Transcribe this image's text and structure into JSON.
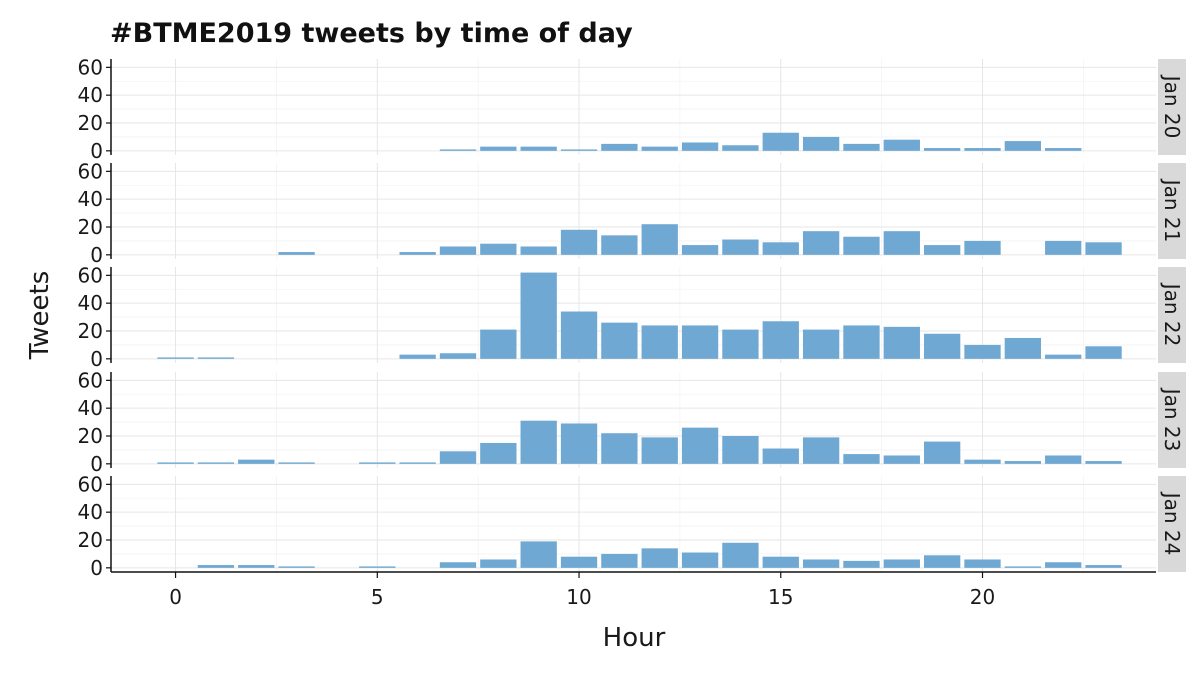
{
  "chart_data": {
    "type": "bar",
    "title": "#BTME2019 tweets by time of day",
    "xlabel": "Hour",
    "ylabel": "Tweets",
    "x_ticks": [
      0,
      5,
      10,
      15,
      20
    ],
    "xlim": [
      -1.6,
      24.3
    ],
    "y_ticks": [
      0,
      20,
      40,
      60
    ],
    "ylim": [
      -3,
      66
    ],
    "bar_color": "#6fa8d2",
    "grid": true,
    "facets": [
      {
        "label": "Jan 20",
        "bars": [
          {
            "hour": 7,
            "value": 1
          },
          {
            "hour": 8,
            "value": 3
          },
          {
            "hour": 9,
            "value": 3
          },
          {
            "hour": 10,
            "value": 1
          },
          {
            "hour": 11,
            "value": 5
          },
          {
            "hour": 12,
            "value": 3
          },
          {
            "hour": 13,
            "value": 6
          },
          {
            "hour": 14,
            "value": 4
          },
          {
            "hour": 15,
            "value": 13
          },
          {
            "hour": 16,
            "value": 10
          },
          {
            "hour": 17,
            "value": 5
          },
          {
            "hour": 18,
            "value": 8
          },
          {
            "hour": 19,
            "value": 2
          },
          {
            "hour": 20,
            "value": 2
          },
          {
            "hour": 21,
            "value": 7
          },
          {
            "hour": 22,
            "value": 2
          }
        ]
      },
      {
        "label": "Jan 21",
        "bars": [
          {
            "hour": 3,
            "value": 2
          },
          {
            "hour": 6,
            "value": 2
          },
          {
            "hour": 7,
            "value": 6
          },
          {
            "hour": 8,
            "value": 8
          },
          {
            "hour": 9,
            "value": 6
          },
          {
            "hour": 10,
            "value": 18
          },
          {
            "hour": 11,
            "value": 14
          },
          {
            "hour": 12,
            "value": 22
          },
          {
            "hour": 13,
            "value": 7
          },
          {
            "hour": 14,
            "value": 11
          },
          {
            "hour": 15,
            "value": 9
          },
          {
            "hour": 16,
            "value": 17
          },
          {
            "hour": 17,
            "value": 13
          },
          {
            "hour": 18,
            "value": 17
          },
          {
            "hour": 19,
            "value": 7
          },
          {
            "hour": 20,
            "value": 10
          },
          {
            "hour": 22,
            "value": 10
          },
          {
            "hour": 23,
            "value": 9
          }
        ]
      },
      {
        "label": "Jan 22",
        "bars": [
          {
            "hour": 0,
            "value": 1
          },
          {
            "hour": 1,
            "value": 1
          },
          {
            "hour": 6,
            "value": 3
          },
          {
            "hour": 7,
            "value": 4
          },
          {
            "hour": 8,
            "value": 21
          },
          {
            "hour": 9,
            "value": 62
          },
          {
            "hour": 10,
            "value": 34
          },
          {
            "hour": 11,
            "value": 26
          },
          {
            "hour": 12,
            "value": 24
          },
          {
            "hour": 13,
            "value": 24
          },
          {
            "hour": 14,
            "value": 21
          },
          {
            "hour": 15,
            "value": 27
          },
          {
            "hour": 16,
            "value": 21
          },
          {
            "hour": 17,
            "value": 24
          },
          {
            "hour": 18,
            "value": 23
          },
          {
            "hour": 19,
            "value": 18
          },
          {
            "hour": 20,
            "value": 10
          },
          {
            "hour": 21,
            "value": 15
          },
          {
            "hour": 22,
            "value": 3
          },
          {
            "hour": 23,
            "value": 9
          }
        ]
      },
      {
        "label": "Jan 23",
        "bars": [
          {
            "hour": 0,
            "value": 1
          },
          {
            "hour": 1,
            "value": 1
          },
          {
            "hour": 2,
            "value": 3
          },
          {
            "hour": 3,
            "value": 1
          },
          {
            "hour": 5,
            "value": 1
          },
          {
            "hour": 6,
            "value": 1
          },
          {
            "hour": 7,
            "value": 9
          },
          {
            "hour": 8,
            "value": 15
          },
          {
            "hour": 9,
            "value": 31
          },
          {
            "hour": 10,
            "value": 29
          },
          {
            "hour": 11,
            "value": 22
          },
          {
            "hour": 12,
            "value": 19
          },
          {
            "hour": 13,
            "value": 26
          },
          {
            "hour": 14,
            "value": 20
          },
          {
            "hour": 15,
            "value": 11
          },
          {
            "hour": 16,
            "value": 19
          },
          {
            "hour": 17,
            "value": 7
          },
          {
            "hour": 18,
            "value": 6
          },
          {
            "hour": 19,
            "value": 16
          },
          {
            "hour": 20,
            "value": 3
          },
          {
            "hour": 21,
            "value": 2
          },
          {
            "hour": 22,
            "value": 6
          },
          {
            "hour": 23,
            "value": 2
          }
        ]
      },
      {
        "label": "Jan 24",
        "bars": [
          {
            "hour": 1,
            "value": 2
          },
          {
            "hour": 2,
            "value": 2
          },
          {
            "hour": 3,
            "value": 1
          },
          {
            "hour": 5,
            "value": 1
          },
          {
            "hour": 7,
            "value": 4
          },
          {
            "hour": 8,
            "value": 6
          },
          {
            "hour": 9,
            "value": 19
          },
          {
            "hour": 10,
            "value": 8
          },
          {
            "hour": 11,
            "value": 10
          },
          {
            "hour": 12,
            "value": 14
          },
          {
            "hour": 13,
            "value": 11
          },
          {
            "hour": 14,
            "value": 18
          },
          {
            "hour": 15,
            "value": 8
          },
          {
            "hour": 16,
            "value": 6
          },
          {
            "hour": 17,
            "value": 5
          },
          {
            "hour": 18,
            "value": 6
          },
          {
            "hour": 19,
            "value": 9
          },
          {
            "hour": 20,
            "value": 6
          },
          {
            "hour": 21,
            "value": 1
          },
          {
            "hour": 22,
            "value": 4
          },
          {
            "hour": 23,
            "value": 2
          }
        ]
      }
    ]
  }
}
